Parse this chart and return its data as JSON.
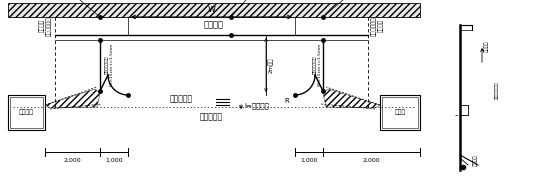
{
  "bg_color": "#ffffff",
  "lc": "#000000",
  "minchi": "（民地）",
  "w_label": "w",
  "road_label": "（車道部）",
  "left_box": "植樹帯等",
  "right_box": "植樹帯",
  "left_asp1": "アスファルト",
  "left_asp2": "カッター",
  "right_asp1": "アスファルト",
  "right_asp2": "カッター",
  "dim_label1": "区画線（白色）",
  "dim_label2": "W=15cm t=1.5mm",
  "suritske": "すりつけ部",
  "slope": "i=横断勾配",
  "height2m": "2m以上",
  "d2000L": "2,000",
  "d1000L": "1,000",
  "d1000R": "1,000",
  "d2000R": "2,000",
  "side_pct": "２％以下",
  "side_sec": "（＝１５秒以下",
  "side_hako": "箱抜補修",
  "R_label": "R"
}
